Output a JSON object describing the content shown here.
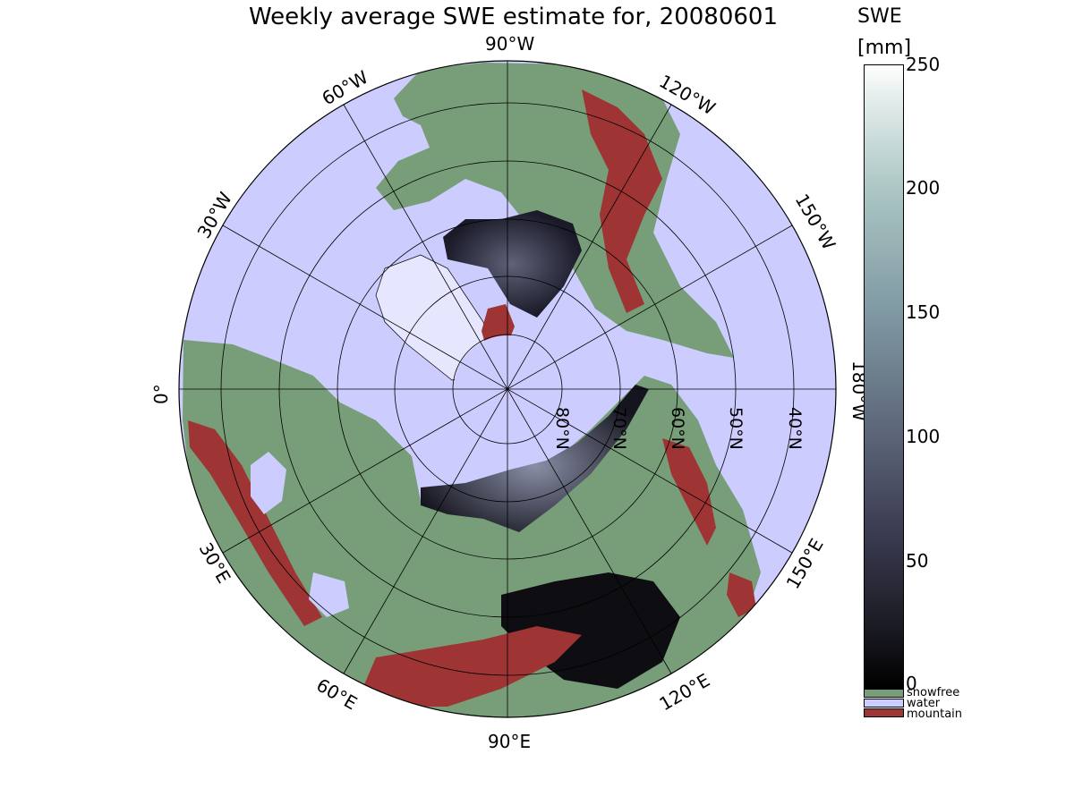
{
  "title": "Weekly average SWE estimate for, 20080601",
  "lon_labels": {
    "w90": "90°W",
    "w60": "60°W",
    "w120": "120°W",
    "w30": "30°W",
    "w150": "150°W",
    "zero": "0°",
    "w180": "180°W",
    "e30": "30°E",
    "e150": "150°E",
    "e60": "60°E",
    "e120": "120°E",
    "e90": "90°E"
  },
  "lat_labels": {
    "n80": "80°N",
    "n70": "70°N",
    "n60": "60°N",
    "n50": "50°N",
    "n40": "40°N"
  },
  "colorbar": {
    "title_line1": "SWE",
    "title_line2": "[mm]",
    "ticks": [
      "250",
      "200",
      "150",
      "100",
      "50",
      "0"
    ],
    "range": [
      0,
      250
    ]
  },
  "categories": [
    {
      "label": "snowfree",
      "color": "#779e78"
    },
    {
      "label": "water",
      "color": "#ccccff"
    },
    {
      "label": "mountain",
      "color": "#9e3434"
    }
  ],
  "colors": {
    "ocean": "#ccccff",
    "land": "#779e78",
    "mountain": "#9e3434",
    "snow": "#1d1d2a"
  }
}
